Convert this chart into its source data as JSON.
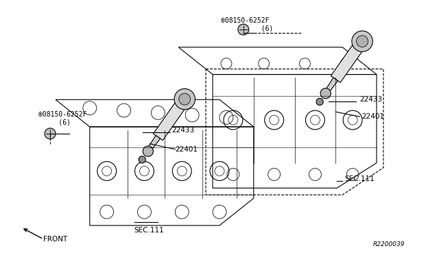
{
  "bg_color": "#ffffff",
  "line_color": "#000000",
  "fig_width": 6.4,
  "fig_height": 3.72,
  "dpi": 100,
  "labels": {
    "bolt_left": "®08150-6252F\n     (6)",
    "bolt_right": "®08150-6252F\n          (6)",
    "22433_left": "22433",
    "22401_left": "22401",
    "sec111_left": "SEC.111",
    "22433_right": "22433",
    "22401_right": "22401",
    "sec111_right": "SEC.111",
    "front": "FRONT",
    "ref": "R2200039"
  }
}
